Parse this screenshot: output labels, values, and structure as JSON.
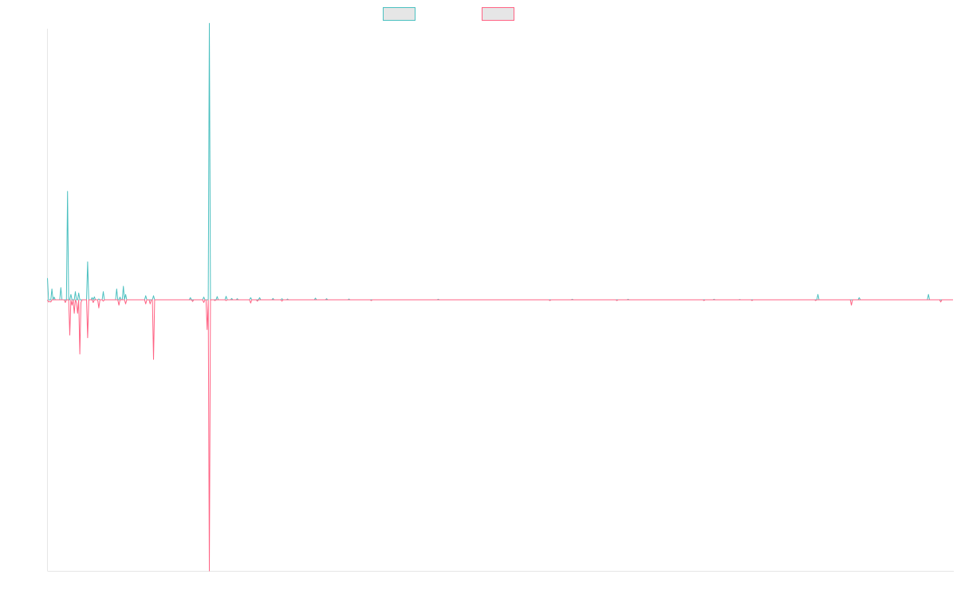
{
  "chart_data": {
    "type": "line",
    "title": "",
    "xlabel": "",
    "ylabel": "",
    "grid": false,
    "legend": "top-center",
    "ylim": [
      -100,
      100
    ],
    "series": [
      {
        "color": "#4bc0c0",
        "fill": "#e6e6e6",
        "spikes": [
          [
            0,
            8
          ],
          [
            4,
            4
          ],
          [
            6,
            1
          ],
          [
            12,
            4.5
          ],
          [
            18,
            40
          ],
          [
            21,
            2
          ],
          [
            25,
            3
          ],
          [
            28,
            2.5
          ],
          [
            36,
            14
          ],
          [
            40,
            0.8
          ],
          [
            42,
            1.1
          ],
          [
            46,
            0.3
          ],
          [
            50,
            3
          ],
          [
            62,
            4
          ],
          [
            65,
            1
          ],
          [
            68,
            5
          ],
          [
            70,
            2
          ],
          [
            88,
            1.5
          ],
          [
            95,
            1.5
          ],
          [
            128,
            0.8
          ],
          [
            140,
            1
          ],
          [
            145,
            102
          ],
          [
            152,
            1.2
          ],
          [
            160,
            1.3
          ],
          [
            165,
            0.5
          ],
          [
            170,
            0.4
          ],
          [
            182,
            0.8
          ],
          [
            190,
            0.8
          ],
          [
            202,
            0.5
          ],
          [
            210,
            0.4
          ],
          [
            215,
            0.3
          ],
          [
            240,
            0.6
          ],
          [
            250,
            0.4
          ],
          [
            270,
            0.3
          ],
          [
            350,
            0.2
          ],
          [
            470,
            0.2
          ],
          [
            520,
            0.2
          ],
          [
            597,
            0.2
          ],
          [
            620,
            0.1
          ],
          [
            690,
            2
          ],
          [
            727,
            0.8
          ],
          [
            789,
            2
          ]
        ]
      },
      {
        "color": "#ff6384",
        "fill": "#e6e6e6",
        "spikes": [
          [
            1,
            -0.8
          ],
          [
            2,
            -0.6
          ],
          [
            3,
            -0.8
          ],
          [
            16,
            -1
          ],
          [
            20,
            -13
          ],
          [
            22,
            -2
          ],
          [
            24,
            -5
          ],
          [
            26,
            -1
          ],
          [
            27,
            -5
          ],
          [
            29,
            -20
          ],
          [
            30,
            -1
          ],
          [
            36,
            -14
          ],
          [
            41,
            -1
          ],
          [
            46,
            -3
          ],
          [
            50,
            -0.5
          ],
          [
            64,
            -2
          ],
          [
            70,
            -1.5
          ],
          [
            88,
            -1.5
          ],
          [
            92,
            -1.5
          ],
          [
            95,
            -22
          ],
          [
            130,
            -0.6
          ],
          [
            140,
            -1
          ],
          [
            143,
            -11
          ],
          [
            145,
            -100
          ],
          [
            150,
            -0.3
          ],
          [
            160,
            -0.3
          ],
          [
            182,
            -1.2
          ],
          [
            188,
            -0.5
          ],
          [
            210,
            -0.5
          ],
          [
            290,
            -0.3
          ],
          [
            450,
            -0.3
          ],
          [
            510,
            -0.3
          ],
          [
            588,
            -0.3
          ],
          [
            631,
            -0.3
          ],
          [
            688,
            -0.3
          ],
          [
            720,
            -2
          ],
          [
            800,
            -0.8
          ]
        ]
      }
    ]
  }
}
